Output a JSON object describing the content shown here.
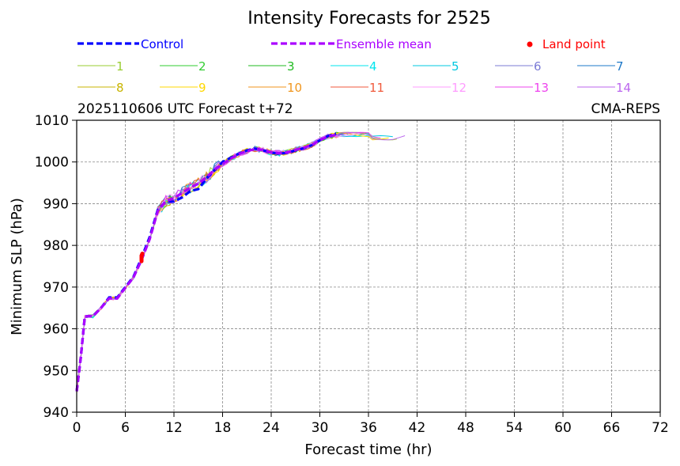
{
  "chart_data": {
    "type": "line",
    "title": "Intensity Forecasts for 2525",
    "subtitle_left": "2025110606 UTC Forecast t+72",
    "subtitle_right": "CMA-REPS",
    "xlabel": "Forecast time (hr)",
    "ylabel": "Minimum SLP (hPa)",
    "xlim": [
      0,
      72
    ],
    "ylim": [
      940,
      1010
    ],
    "xticks": [
      0,
      6,
      12,
      18,
      24,
      30,
      36,
      42,
      48,
      54,
      60,
      66,
      72
    ],
    "yticks": [
      940,
      950,
      960,
      970,
      980,
      990,
      1000,
      1010
    ],
    "grid": true,
    "legend": {
      "control": {
        "label": "Control",
        "color": "#0000ff"
      },
      "ensemble_mean": {
        "label": "Ensemble mean",
        "color": "#aa00ff"
      },
      "land_point": {
        "label": "Land point",
        "color": "#ff0000"
      },
      "members": [
        {
          "label": "1",
          "color": "#9acd32"
        },
        {
          "label": "2",
          "color": "#32cd32"
        },
        {
          "label": "3",
          "color": "#22bb22"
        },
        {
          "label": "4",
          "color": "#00e5ee"
        },
        {
          "label": "5",
          "color": "#00c8e0"
        },
        {
          "label": "6",
          "color": "#7b7bd6"
        },
        {
          "label": "7",
          "color": "#1e78c8"
        },
        {
          "label": "8",
          "color": "#c8b400"
        },
        {
          "label": "9",
          "color": "#ffd700"
        },
        {
          "label": "10",
          "color": "#f0961e"
        },
        {
          "label": "11",
          "color": "#f05a3c"
        },
        {
          "label": "12",
          "color": "#ff9bff"
        },
        {
          "label": "13",
          "color": "#ee44ee"
        },
        {
          "label": "14",
          "color": "#bb66ee"
        }
      ]
    },
    "series": [
      {
        "name": "Control",
        "x": [
          0,
          0.5,
          1,
          2,
          3,
          4,
          5,
          6,
          7,
          8,
          9,
          10,
          11,
          12,
          13,
          14,
          15,
          16,
          17,
          18,
          19,
          20,
          21,
          22,
          23,
          24,
          25,
          26,
          27,
          28,
          29,
          30,
          31,
          32
        ],
        "y": [
          945,
          953,
          963,
          963,
          965,
          967.5,
          967.5,
          970,
          972.5,
          977,
          982,
          988.5,
          990.5,
          990.5,
          991.5,
          993,
          993.5,
          996,
          998,
          1000,
          1001,
          1002,
          1002.8,
          1003.2,
          1002.8,
          1002.2,
          1002,
          1002.2,
          1002.8,
          1003.3,
          1004,
          1005.2,
          1006.2,
          1006.8
        ]
      },
      {
        "name": "Ensemble mean",
        "x": [
          0,
          0.5,
          1,
          2,
          3,
          4,
          5,
          6,
          7,
          8,
          9,
          10,
          11,
          12,
          13,
          14,
          15,
          16,
          17,
          18,
          19,
          20,
          21,
          22,
          23,
          24,
          25,
          26,
          27,
          28,
          29,
          30,
          31,
          32
        ],
        "y": [
          945,
          953,
          963,
          963,
          965,
          967.3,
          967.3,
          969.8,
          972.3,
          976.5,
          981.5,
          988.2,
          990.6,
          991.3,
          992.6,
          993.8,
          994.8,
          996.3,
          998.2,
          999.5,
          1000.8,
          1001.9,
          1002.6,
          1003.1,
          1002.9,
          1002.3,
          1002.1,
          1002.3,
          1002.9,
          1003.4,
          1004.1,
          1005.2,
          1006.1,
          1006.5
        ]
      },
      {
        "name": "Land point",
        "x": [
          8,
          8,
          8.1
        ],
        "y": [
          976.2,
          977.5,
          978
        ]
      }
    ]
  }
}
